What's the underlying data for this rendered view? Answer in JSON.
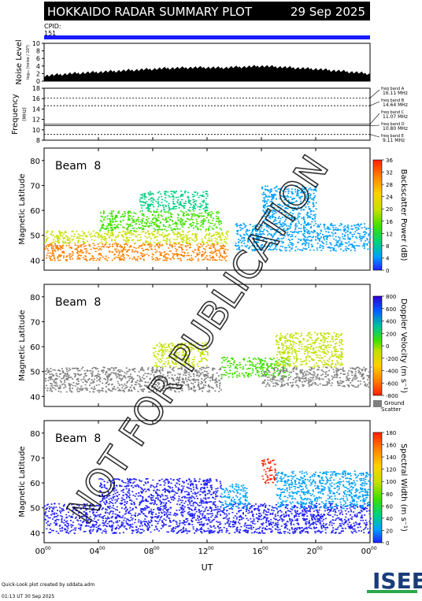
{
  "header": {
    "title": "HOKKAIDO RADAR SUMMARY PLOT",
    "date": "29 Sep 2025",
    "cpid_label": "CPID:",
    "cpid_value": "151"
  },
  "colors": {
    "header_bg": "#000000",
    "header_text": "#ffffff",
    "cpid_bar": "#1a1aff",
    "ground_scatter": "#808080",
    "watermark": "#000000"
  },
  "noise_panel": {
    "ylabel": "Noise Level",
    "ylabel_sub": "log₁₀ (noise / 10³)",
    "yticks": [
      "10",
      "8",
      "6",
      "4",
      "2",
      "0"
    ]
  },
  "freq_panel": {
    "ylabel": "Frequency",
    "ylabel_sub": "(MHz)",
    "yticks": [
      "18",
      "16",
      "14",
      "12",
      "10",
      "8"
    ],
    "bands": [
      {
        "label": "freq band A",
        "value": "16.11 MHz"
      },
      {
        "label": "freq band B",
        "value": "14.64 MHz"
      },
      {
        "label": "freq band C",
        "value": "11.07 MHz"
      },
      {
        "label": "freq band D",
        "value": "10.80 MHz"
      },
      {
        "label": "freq band E",
        "value": "9.11 MHz"
      }
    ]
  },
  "panels": [
    {
      "beam": "Beam  8",
      "ylabel": "Magnetic Latitude",
      "yticks": [
        "80",
        "70",
        "60",
        "50",
        "40"
      ],
      "cbar_label": "Backscatter Power (dB)",
      "cbar_ticks": [
        "36",
        "32",
        "28",
        "24",
        "20",
        "16",
        "12",
        "8",
        "4",
        "0"
      ]
    },
    {
      "beam": "Beam  8",
      "ylabel": "Magnetic Latitude",
      "yticks": [
        "80",
        "70",
        "60",
        "50",
        "40"
      ],
      "cbar_label": "Doppler Velocity (m s⁻¹)",
      "cbar_ticks": [
        "800",
        "600",
        "400",
        "200",
        "0",
        "-200",
        "-400",
        "-600",
        "-800"
      ],
      "ground_label": "Ground",
      "scatter_label": "Scatter"
    },
    {
      "beam": "Beam  8",
      "ylabel": "Magnetic Latitude",
      "yticks": [
        "80",
        "70",
        "60",
        "50",
        "40"
      ],
      "cbar_label": "Spectral Width (m s⁻¹)",
      "cbar_ticks": [
        "180",
        "160",
        "140",
        "120",
        "100",
        "80",
        "60",
        "40",
        "20",
        "0"
      ]
    }
  ],
  "xaxis": {
    "ticks": [
      "00",
      "04",
      "08",
      "12",
      "16",
      "20",
      "00"
    ],
    "tick_sup": "00",
    "label": "UT"
  },
  "footer": {
    "line1": "Quick-Look plot created by sddata.adm",
    "line2": "01:13 UT 30 Sep 2025",
    "logo_text": "ISEE"
  },
  "watermark": "NOT FOR PUBLICATION",
  "chart_data": [
    {
      "type": "area",
      "title": "Noise Level",
      "xlabel": "",
      "ylabel": "Noise Level",
      "x_unit": "UT hour",
      "xlim": [
        0,
        24
      ],
      "ylim": [
        0,
        10
      ],
      "x": [
        0,
        1,
        2,
        3,
        4,
        5,
        6,
        7,
        8,
        9,
        10,
        11,
        12,
        13,
        14,
        15,
        16,
        17,
        18,
        19,
        20,
        21,
        22,
        23,
        24
      ],
      "y": [
        1.0,
        1.3,
        1.6,
        1.8,
        2.0,
        2.2,
        2.4,
        2.6,
        2.8,
        3.0,
        3.1,
        3.2,
        3.2,
        3.1,
        3.3,
        3.4,
        3.6,
        3.4,
        3.2,
        3.0,
        2.8,
        2.5,
        2.2,
        1.9,
        1.5
      ]
    },
    {
      "type": "line",
      "title": "Frequency",
      "ylabel": "Frequency (MHz)",
      "ylim": [
        8,
        18
      ],
      "series": [
        {
          "name": "freq band A",
          "value": 16.11
        },
        {
          "name": "freq band B",
          "value": 14.64
        },
        {
          "name": "freq band C",
          "value": 11.07
        },
        {
          "name": "freq band D",
          "value": 10.8
        },
        {
          "name": "freq band E",
          "value": 9.11
        }
      ]
    },
    {
      "type": "heatmap",
      "title": "Backscatter Power (dB)",
      "ylabel": "Magnetic Latitude",
      "xlim": [
        0,
        24
      ],
      "ylim": [
        36,
        85
      ],
      "clim": [
        0,
        36
      ],
      "regions": [
        {
          "x": [
            0,
            13.5
          ],
          "y": [
            40,
            47
          ],
          "value": 30
        },
        {
          "x": [
            0,
            13.5
          ],
          "y": [
            47,
            52
          ],
          "value": 22
        },
        {
          "x": [
            4,
            13
          ],
          "y": [
            52,
            60
          ],
          "value": 16
        },
        {
          "x": [
            7,
            12
          ],
          "y": [
            60,
            68
          ],
          "value": 12
        },
        {
          "x": [
            14,
            24
          ],
          "y": [
            44,
            55
          ],
          "value": 8
        },
        {
          "x": [
            16,
            20
          ],
          "y": [
            55,
            70
          ],
          "value": 6
        }
      ]
    },
    {
      "type": "heatmap",
      "title": "Doppler Velocity (m s⁻¹)",
      "ylabel": "Magnetic Latitude",
      "xlim": [
        0,
        24
      ],
      "ylim": [
        36,
        85
      ],
      "clim": [
        -800,
        800
      ],
      "regions": [
        {
          "x": [
            0,
            13
          ],
          "y": [
            42,
            52
          ],
          "value": "ground scatter"
        },
        {
          "x": [
            8,
            12
          ],
          "y": [
            52,
            62
          ],
          "value": -100
        },
        {
          "x": [
            13,
            18
          ],
          "y": [
            48,
            56
          ],
          "value": 100
        },
        {
          "x": [
            16,
            24
          ],
          "y": [
            44,
            52
          ],
          "value": "ground scatter"
        },
        {
          "x": [
            17,
            22
          ],
          "y": [
            52,
            66
          ],
          "value": -200
        }
      ]
    },
    {
      "type": "heatmap",
      "title": "Spectral Width (m s⁻¹)",
      "ylabel": "Magnetic Latitude",
      "xlim": [
        0,
        24
      ],
      "ylim": [
        36,
        85
      ],
      "clim": [
        0,
        180
      ],
      "regions": [
        {
          "x": [
            0,
            24
          ],
          "y": [
            40,
            52
          ],
          "value": 10
        },
        {
          "x": [
            4,
            13
          ],
          "y": [
            52,
            62
          ],
          "value": 20
        },
        {
          "x": [
            13,
            15
          ],
          "y": [
            50,
            60
          ],
          "value": 25
        },
        {
          "x": [
            16,
            17
          ],
          "y": [
            60,
            70
          ],
          "value": 160
        },
        {
          "x": [
            17,
            24
          ],
          "y": [
            50,
            65
          ],
          "value": 30
        }
      ]
    }
  ]
}
